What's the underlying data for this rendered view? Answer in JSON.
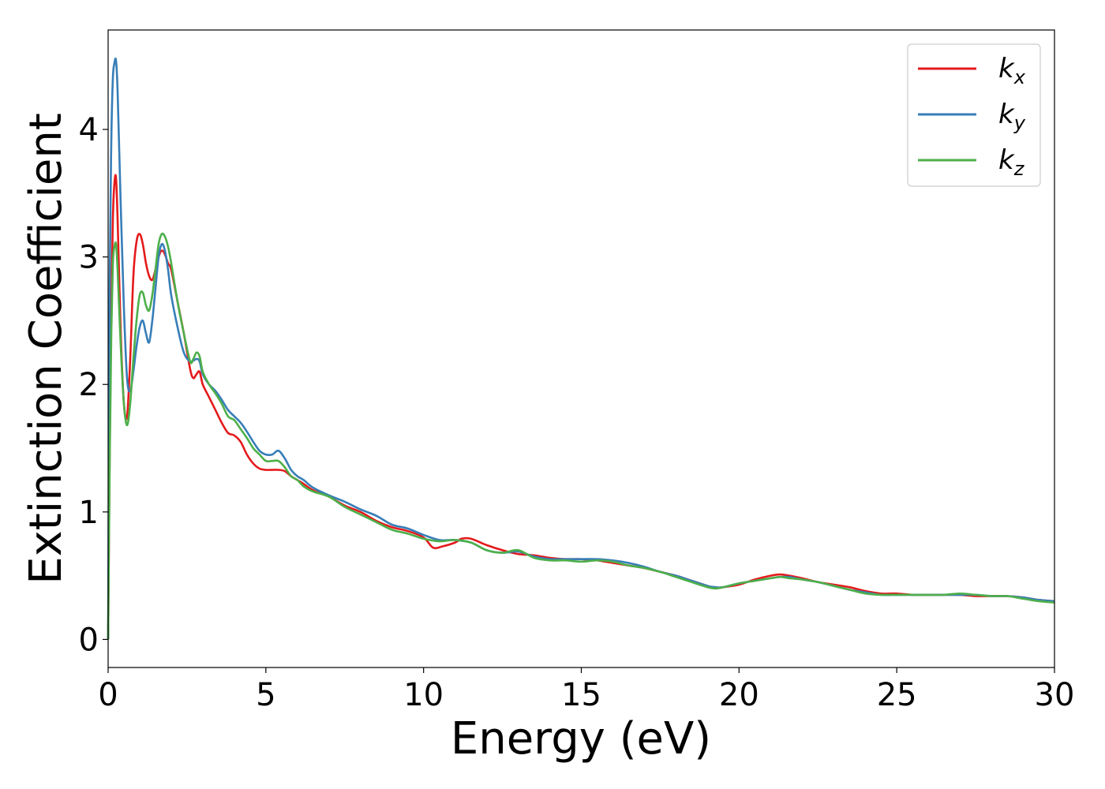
{
  "chart_data": {
    "type": "line",
    "title": "",
    "xlabel": "Energy (eV)",
    "ylabel": "Extinction Coefficient",
    "xlim": [
      0,
      30
    ],
    "ylim": [
      -0.22,
      4.78
    ],
    "xticks": [
      0,
      5,
      10,
      15,
      20,
      25,
      30
    ],
    "xtick_labels": [
      "0",
      "5",
      "10",
      "15",
      "20",
      "25",
      "30"
    ],
    "yticks": [
      0,
      1,
      2,
      3,
      4
    ],
    "ytick_labels": [
      "0",
      "1",
      "2",
      "3",
      "4"
    ],
    "grid": false,
    "legend_position": "top-right",
    "series": [
      {
        "name": "k_x",
        "label_base": "k",
        "label_sub": "x",
        "color": "#e41a1c",
        "x": [
          0,
          0.05,
          0.1,
          0.15,
          0.2,
          0.25,
          0.3,
          0.4,
          0.5,
          0.6,
          0.7,
          0.8,
          0.9,
          1.0,
          1.1,
          1.2,
          1.3,
          1.4,
          1.5,
          1.6,
          1.7,
          1.8,
          1.9,
          2.0,
          2.2,
          2.4,
          2.6,
          2.7,
          2.8,
          2.9,
          3.0,
          3.2,
          3.4,
          3.6,
          3.8,
          4.0,
          4.2,
          4.4,
          4.6,
          4.8,
          5.0,
          5.2,
          5.4,
          5.6,
          5.8,
          6.0,
          6.2,
          6.5,
          7.0,
          7.5,
          8.0,
          8.5,
          9.0,
          9.5,
          10.0,
          10.3,
          10.6,
          11.0,
          11.2,
          11.5,
          12.0,
          12.5,
          13.0,
          13.5,
          14.0,
          14.5,
          15.0,
          15.5,
          16.0,
          16.5,
          17.0,
          17.5,
          18.0,
          18.5,
          19.0,
          19.25,
          19.5,
          20.0,
          20.5,
          21.0,
          21.3,
          21.6,
          22.0,
          22.5,
          23.0,
          23.5,
          24.0,
          24.5,
          25.0,
          25.5,
          26.0,
          26.5,
          27.0,
          27.5,
          28.0,
          28.5,
          29.0,
          29.5,
          30.0
        ],
        "y": [
          0.0,
          1.5,
          2.6,
          3.3,
          3.58,
          3.62,
          3.3,
          2.4,
          1.85,
          1.75,
          2.2,
          2.85,
          3.12,
          3.18,
          3.1,
          2.95,
          2.85,
          2.82,
          2.9,
          3.0,
          3.05,
          3.02,
          2.95,
          2.9,
          2.65,
          2.4,
          2.12,
          2.05,
          2.08,
          2.1,
          2.0,
          1.9,
          1.8,
          1.7,
          1.62,
          1.6,
          1.55,
          1.45,
          1.38,
          1.34,
          1.33,
          1.33,
          1.33,
          1.32,
          1.28,
          1.25,
          1.22,
          1.17,
          1.12,
          1.05,
          1.0,
          0.93,
          0.88,
          0.85,
          0.8,
          0.72,
          0.73,
          0.76,
          0.79,
          0.79,
          0.74,
          0.7,
          0.67,
          0.66,
          0.64,
          0.63,
          0.63,
          0.62,
          0.6,
          0.58,
          0.56,
          0.53,
          0.5,
          0.46,
          0.42,
          0.4,
          0.41,
          0.43,
          0.47,
          0.5,
          0.51,
          0.5,
          0.48,
          0.45,
          0.43,
          0.41,
          0.38,
          0.36,
          0.36,
          0.35,
          0.35,
          0.35,
          0.35,
          0.34,
          0.34,
          0.34,
          0.33,
          0.31,
          0.3
        ]
      },
      {
        "name": "k_y",
        "label_base": "k",
        "label_sub": "y",
        "color": "#377eb8",
        "x": [
          0,
          0.05,
          0.1,
          0.15,
          0.2,
          0.25,
          0.3,
          0.4,
          0.5,
          0.6,
          0.7,
          0.8,
          0.9,
          1.0,
          1.1,
          1.2,
          1.3,
          1.4,
          1.5,
          1.6,
          1.7,
          1.8,
          1.9,
          2.0,
          2.2,
          2.4,
          2.6,
          2.8,
          2.9,
          3.0,
          3.2,
          3.4,
          3.6,
          3.8,
          4.0,
          4.2,
          4.4,
          4.6,
          4.8,
          5.0,
          5.2,
          5.4,
          5.6,
          5.8,
          6.0,
          6.2,
          6.5,
          7.0,
          7.5,
          8.0,
          8.5,
          9.0,
          9.5,
          10.0,
          10.5,
          11.0,
          11.5,
          12.0,
          12.5,
          13.0,
          13.5,
          14.0,
          14.5,
          15.0,
          15.5,
          16.0,
          16.5,
          17.0,
          17.5,
          18.0,
          18.5,
          19.0,
          19.25,
          19.5,
          20.0,
          20.5,
          21.0,
          21.3,
          21.6,
          22.0,
          22.5,
          23.0,
          23.5,
          24.0,
          24.5,
          25.0,
          25.5,
          26.0,
          26.5,
          27.0,
          27.5,
          28.0,
          28.5,
          29.0,
          29.5,
          30.0
        ],
        "y": [
          0.0,
          2.8,
          3.9,
          4.4,
          4.52,
          4.54,
          4.3,
          3.4,
          2.6,
          2.05,
          1.95,
          2.1,
          2.3,
          2.45,
          2.5,
          2.4,
          2.33,
          2.5,
          2.75,
          3.0,
          3.1,
          3.05,
          2.9,
          2.7,
          2.45,
          2.25,
          2.18,
          2.2,
          2.18,
          2.08,
          2.0,
          1.95,
          1.88,
          1.8,
          1.75,
          1.7,
          1.63,
          1.55,
          1.48,
          1.45,
          1.45,
          1.48,
          1.42,
          1.33,
          1.28,
          1.25,
          1.19,
          1.13,
          1.08,
          1.02,
          0.97,
          0.9,
          0.87,
          0.82,
          0.78,
          0.78,
          0.76,
          0.7,
          0.68,
          0.69,
          0.65,
          0.63,
          0.63,
          0.63,
          0.63,
          0.62,
          0.6,
          0.57,
          0.53,
          0.5,
          0.46,
          0.42,
          0.41,
          0.41,
          0.44,
          0.46,
          0.48,
          0.49,
          0.49,
          0.47,
          0.45,
          0.42,
          0.39,
          0.37,
          0.35,
          0.35,
          0.35,
          0.35,
          0.35,
          0.35,
          0.35,
          0.34,
          0.34,
          0.33,
          0.31,
          0.3
        ]
      },
      {
        "name": "k_z",
        "label_base": "k",
        "label_sub": "z",
        "color": "#4daf4a",
        "x": [
          0,
          0.05,
          0.1,
          0.15,
          0.2,
          0.25,
          0.3,
          0.4,
          0.5,
          0.6,
          0.7,
          0.8,
          0.9,
          1.0,
          1.1,
          1.2,
          1.3,
          1.4,
          1.5,
          1.6,
          1.7,
          1.8,
          1.9,
          2.0,
          2.2,
          2.4,
          2.6,
          2.7,
          2.8,
          2.9,
          3.0,
          3.2,
          3.4,
          3.6,
          3.8,
          4.0,
          4.2,
          4.4,
          4.6,
          4.8,
          5.0,
          5.2,
          5.4,
          5.6,
          5.8,
          6.0,
          6.2,
          6.5,
          7.0,
          7.5,
          8.0,
          8.5,
          9.0,
          9.5,
          10.0,
          10.5,
          11.0,
          11.5,
          12.0,
          12.5,
          13.0,
          13.5,
          14.0,
          14.5,
          15.0,
          15.5,
          16.0,
          16.5,
          17.0,
          17.5,
          18.0,
          18.5,
          19.0,
          19.25,
          19.5,
          20.0,
          20.5,
          21.0,
          21.3,
          21.6,
          22.0,
          22.5,
          23.0,
          23.5,
          24.0,
          24.5,
          25.0,
          25.5,
          26.0,
          26.5,
          27.0,
          27.5,
          28.0,
          28.5,
          29.0,
          29.5,
          30.0
        ],
        "y": [
          0.0,
          1.4,
          2.4,
          2.95,
          3.08,
          3.1,
          2.9,
          2.3,
          1.85,
          1.68,
          1.85,
          2.2,
          2.5,
          2.7,
          2.72,
          2.62,
          2.58,
          2.7,
          2.9,
          3.1,
          3.18,
          3.16,
          3.08,
          2.95,
          2.65,
          2.4,
          2.18,
          2.2,
          2.25,
          2.22,
          2.1,
          2.0,
          1.93,
          1.85,
          1.75,
          1.72,
          1.65,
          1.58,
          1.5,
          1.45,
          1.4,
          1.4,
          1.4,
          1.35,
          1.28,
          1.25,
          1.2,
          1.16,
          1.12,
          1.04,
          0.98,
          0.92,
          0.86,
          0.83,
          0.79,
          0.77,
          0.78,
          0.76,
          0.7,
          0.68,
          0.7,
          0.64,
          0.62,
          0.62,
          0.61,
          0.62,
          0.61,
          0.58,
          0.56,
          0.53,
          0.49,
          0.45,
          0.41,
          0.4,
          0.41,
          0.44,
          0.46,
          0.48,
          0.49,
          0.48,
          0.47,
          0.45,
          0.42,
          0.39,
          0.36,
          0.35,
          0.35,
          0.35,
          0.35,
          0.35,
          0.36,
          0.35,
          0.34,
          0.34,
          0.32,
          0.3,
          0.29
        ]
      }
    ]
  }
}
